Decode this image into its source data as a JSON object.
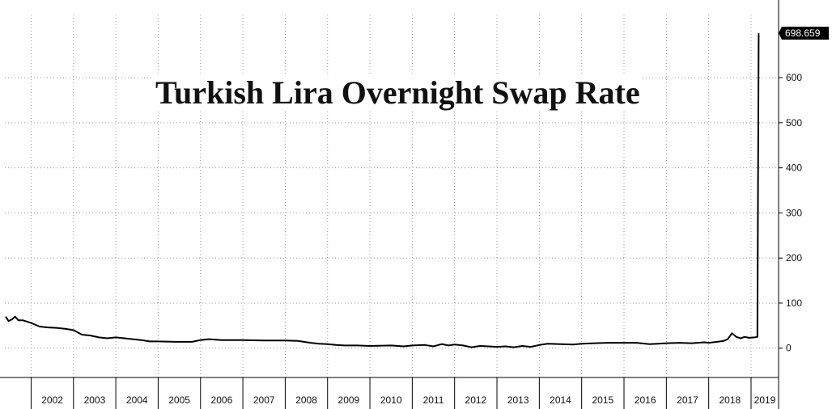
{
  "chart_data": {
    "type": "line",
    "title": "Turkish Lira Overnight Swap Rate",
    "xlabel": "",
    "ylabel": "",
    "x_tick_labels": [
      "2002",
      "2003",
      "2004",
      "2005",
      "2006",
      "2007",
      "2008",
      "2009",
      "2010",
      "2011",
      "2012",
      "2013",
      "2014",
      "2015",
      "2016",
      "2017",
      "2018",
      "2019"
    ],
    "y_tick_labels": [
      "0",
      "100",
      "200",
      "300",
      "400",
      "500",
      "600"
    ],
    "ylim": [
      -65,
      740
    ],
    "xlim": [
      2001.38,
      2019.65
    ],
    "y_axis_side": "right",
    "grid": true,
    "last_value_label": "698.659",
    "series": [
      {
        "color": "#000000",
        "x": [
          2001.4,
          2001.47,
          2001.55,
          2001.62,
          2001.7,
          2001.8,
          2002.0,
          2002.2,
          2002.4,
          2002.6,
          2002.8,
          2003.0,
          2003.2,
          2003.4,
          2003.6,
          2003.8,
          2004.0,
          2004.2,
          2004.4,
          2004.6,
          2004.8,
          2005.0,
          2005.4,
          2005.8,
          2006.0,
          2006.2,
          2006.5,
          2007.0,
          2007.5,
          2008.0,
          2008.3,
          2008.6,
          2008.8,
          2009.0,
          2009.2,
          2009.4,
          2009.7,
          2010.0,
          2010.5,
          2010.8,
          2011.0,
          2011.3,
          2011.5,
          2011.7,
          2011.85,
          2012.0,
          2012.2,
          2012.4,
          2012.6,
          2012.8,
          2013.0,
          2013.2,
          2013.4,
          2013.6,
          2013.8,
          2014.0,
          2014.2,
          2014.5,
          2014.8,
          2015.0,
          2015.3,
          2015.6,
          2015.9,
          2016.0,
          2016.3,
          2016.6,
          2016.8,
          2017.0,
          2017.3,
          2017.6,
          2017.9,
          2018.0,
          2018.2,
          2018.35,
          2018.45,
          2018.55,
          2018.65,
          2018.75,
          2018.85,
          2018.95,
          2019.08,
          2019.15,
          2019.18
        ],
        "values": [
          70,
          60,
          64,
          70,
          62,
          62,
          56,
          48,
          46,
          45,
          43,
          40,
          30,
          28,
          24,
          22,
          24,
          22,
          20,
          18,
          15,
          15,
          14,
          14,
          18,
          20,
          18,
          18,
          17,
          17,
          16,
          12,
          10,
          9,
          7,
          6,
          6,
          5,
          6,
          4,
          6,
          7,
          4,
          9,
          6,
          8,
          6,
          2,
          5,
          4,
          3,
          4,
          2,
          5,
          3,
          7,
          10,
          9,
          8,
          10,
          11,
          12,
          12,
          12,
          12,
          9,
          10,
          11,
          12,
          11,
          13,
          12,
          14,
          16,
          20,
          33,
          25,
          22,
          25,
          23,
          24,
          25,
          698.659
        ]
      }
    ]
  }
}
